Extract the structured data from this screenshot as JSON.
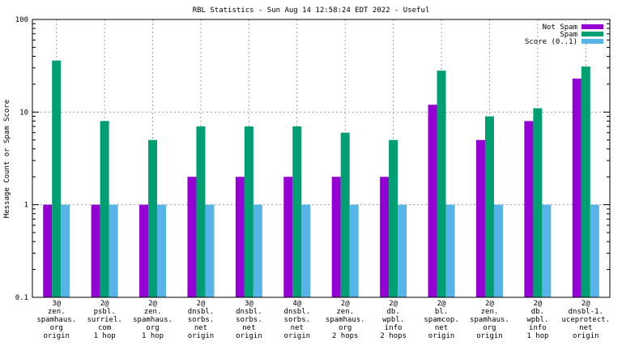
{
  "chart_data": {
    "type": "bar",
    "title": "RBL Statistics - Sun Aug 14 12:58:24 EDT 2022 - Useful",
    "xlabel": "",
    "ylabel": "Message Count or Spam Score",
    "yscale": "log",
    "ylim": [
      0.1,
      100
    ],
    "yticks": [
      {
        "value": 0.1,
        "label": "0.1"
      },
      {
        "value": 1,
        "label": "1"
      },
      {
        "value": 10,
        "label": "10"
      },
      {
        "value": 100,
        "label": "100"
      }
    ],
    "grid": true,
    "legend_position": "top-right",
    "categories": [
      [
        "3@",
        "zen.",
        "spamhaus.",
        "org",
        "origin"
      ],
      [
        "2@",
        "psbl.",
        "surriel.",
        "com",
        "1 hop"
      ],
      [
        "2@",
        "zen.",
        "spamhaus.",
        "org",
        "1 hop"
      ],
      [
        "2@",
        "dnsbl.",
        "sorbs.",
        "net",
        "origin"
      ],
      [
        "3@",
        "dnsbl.",
        "sorbs.",
        "net",
        "origin"
      ],
      [
        "4@",
        "dnsbl.",
        "sorbs.",
        "net",
        "origin"
      ],
      [
        "2@",
        "zen.",
        "spamhaus.",
        "org",
        "2 hops"
      ],
      [
        "2@",
        "db.",
        "wpbl.",
        "info",
        "2 hops"
      ],
      [
        "2@",
        "bl.",
        "spamcop.",
        "net",
        "origin"
      ],
      [
        "2@",
        "zen.",
        "spamhaus.",
        "org",
        "origin"
      ],
      [
        "2@",
        "db.",
        "wpbl.",
        "info",
        "1 hop"
      ],
      [
        "2@",
        "dnsbl-1.",
        "uceprotect.",
        "net",
        "origin"
      ]
    ],
    "series": [
      {
        "name": "Not Spam",
        "color": "#9400d3",
        "values": [
          1,
          1,
          1,
          2,
          2,
          2,
          2,
          2,
          12,
          5,
          8,
          23
        ]
      },
      {
        "name": "Spam",
        "color": "#009e73",
        "values": [
          36,
          8,
          5,
          7,
          7,
          7,
          6,
          5,
          28,
          9,
          11,
          31
        ]
      },
      {
        "name": "Score (0..1)",
        "color": "#56b4e9",
        "values": [
          1,
          1,
          1,
          1,
          1,
          1,
          1,
          1,
          1,
          1,
          1,
          1
        ]
      }
    ]
  }
}
